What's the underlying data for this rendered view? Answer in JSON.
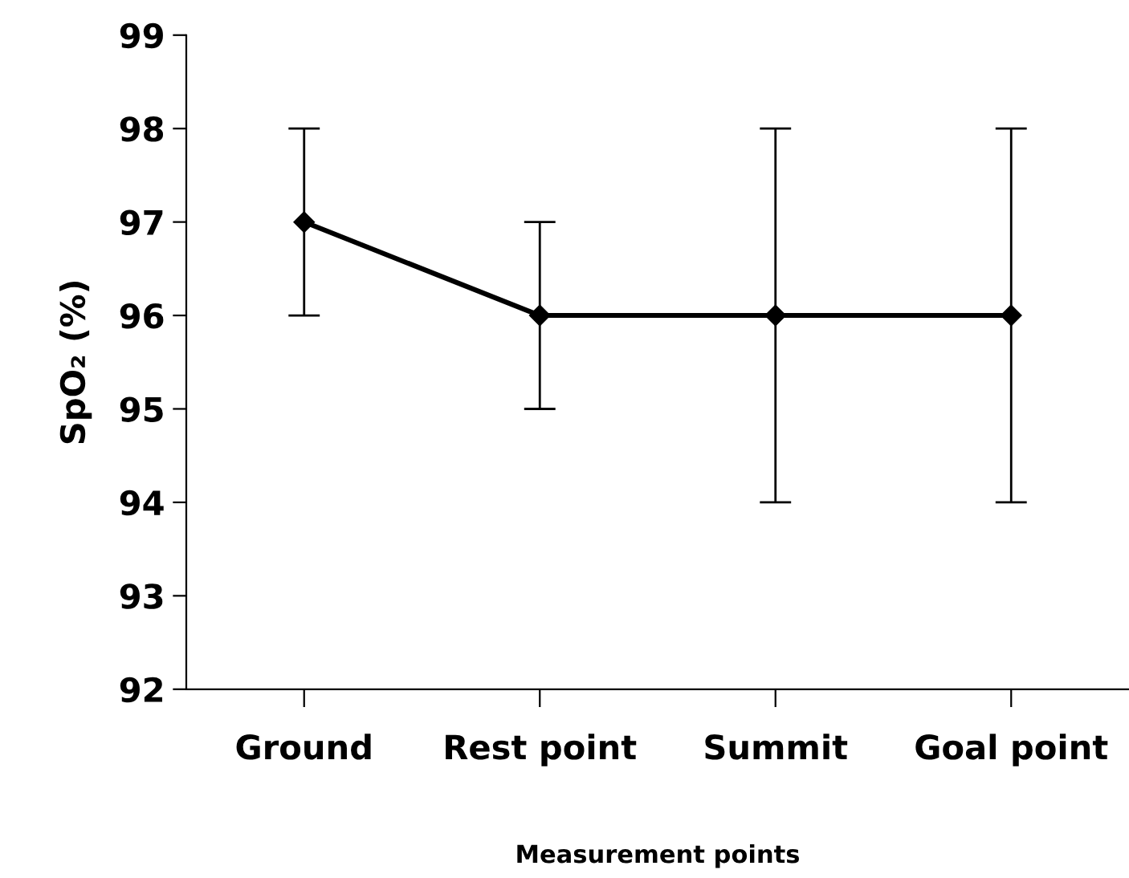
{
  "chart_data": {
    "type": "line",
    "xlabel": "Measurement points",
    "ylabel": "SpO₂ (%)",
    "categories": [
      "Ground",
      "Rest point",
      "Summit",
      "Goal point"
    ],
    "series": [
      {
        "color": "#000000",
        "values": [
          97,
          96,
          96,
          96
        ],
        "errors": [
          1,
          1,
          2,
          2
        ]
      }
    ],
    "ylim": [
      92,
      99
    ],
    "yticks": [
      92,
      93,
      94,
      95,
      96,
      97,
      98,
      99
    ],
    "marker": "diamond",
    "line_style": "solid",
    "grid": false,
    "legend": false
  }
}
